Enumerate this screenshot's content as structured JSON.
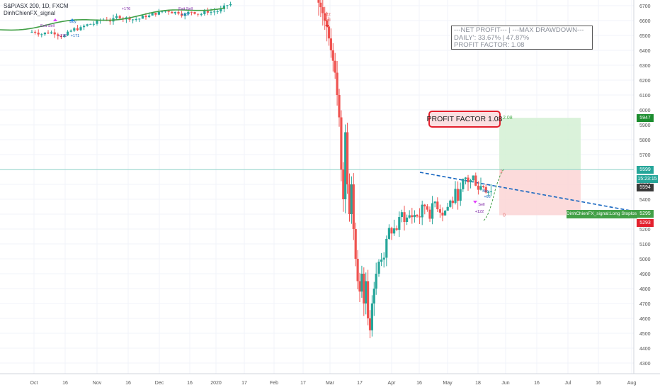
{
  "header": {
    "symbol_line": "S&P/ASX 200, 1D, FXCM",
    "indicator": "DinhChienFX_signal"
  },
  "info_box": {
    "line1": "---NET PROFIT---   |   ---MAX DRAWDOWN---",
    "line2": "DAILY': 33.67%  |  47.87%",
    "line3": "PROFIT FACTOR: 1.08"
  },
  "profit_factor_badge": "PROFIT FACTOR 1.08",
  "position_tool": {
    "target_label": "2.08",
    "stop_label": "0",
    "mid_label": "1"
  },
  "price_axis": {
    "ticks": [
      "6700",
      "6600",
      "6500",
      "6400",
      "6300",
      "6200",
      "6100",
      "6000",
      "5900",
      "5800",
      "5700",
      "5600",
      "5500",
      "5400",
      "5300",
      "5200",
      "5100",
      "5000",
      "4900",
      "4800",
      "4700",
      "4600",
      "4500",
      "4400",
      "4300"
    ],
    "tags": {
      "target": "5947",
      "current": "5599",
      "countdown": "15:23:15",
      "last": "5594",
      "stoploss": "5295",
      "stop": "5293"
    },
    "stoploss_label": "DinhChienFX_signal:Long Stoploss"
  },
  "time_axis": {
    "ticks": [
      "Oct",
      "16",
      "Nov",
      "16",
      "Dec",
      "16",
      "2020",
      "17",
      "Feb",
      "17",
      "Mar",
      "17",
      "Apr",
      "16",
      "May",
      "18",
      "Jun",
      "16",
      "Jul",
      "16",
      "Aug"
    ]
  },
  "signals": {
    "top_left": [
      "Exit Sell",
      "Buy",
      "+176",
      "+171",
      "Exit Sell",
      "+167",
      "+176"
    ],
    "drop": "+22",
    "drop_sell": "Sell",
    "recent": [
      "Buy",
      "+66",
      "Sell",
      "+122"
    ]
  },
  "colors": {
    "up": "#26a69a",
    "down": "#ef5350",
    "ma": "#43a047",
    "grid": "#f0f3fa",
    "current_line": "#8fd3c9",
    "trend": "#1565c0",
    "target_zone": "#d4f0d4",
    "stop_zone": "#fbd5d5"
  },
  "chart_data": {
    "type": "candlestick",
    "title": "S&P/ASX 200, 1D, FXCM",
    "ylim": [
      4300,
      6700
    ],
    "close_series": [
      6600,
      6580,
      6550,
      6620,
      6660,
      6700,
      6680,
      6720,
      6760,
      6700,
      6740,
      6780,
      6800,
      6760,
      6720,
      6700,
      6740,
      6780,
      6820,
      6860,
      6880,
      6920,
      6960,
      6980,
      7000,
      7020,
      7040,
      7060,
      6800,
      6400,
      6200,
      5900,
      5600,
      5300,
      5000,
      4800,
      4900,
      4700,
      4550,
      4800,
      5100,
      5300,
      5200,
      5400,
      5500,
      5450,
      5300,
      5350,
      5500,
      5400,
      5550,
      5500,
      5600,
      5580,
      5620,
      5594
    ],
    "levels": {
      "current": 5599,
      "target": 5947,
      "stoploss": 5295,
      "stop": 5293,
      "last": 5594
    },
    "profit_factor": 1.08,
    "net_profit_pct": 33.67,
    "max_drawdown_pct": 47.87
  }
}
